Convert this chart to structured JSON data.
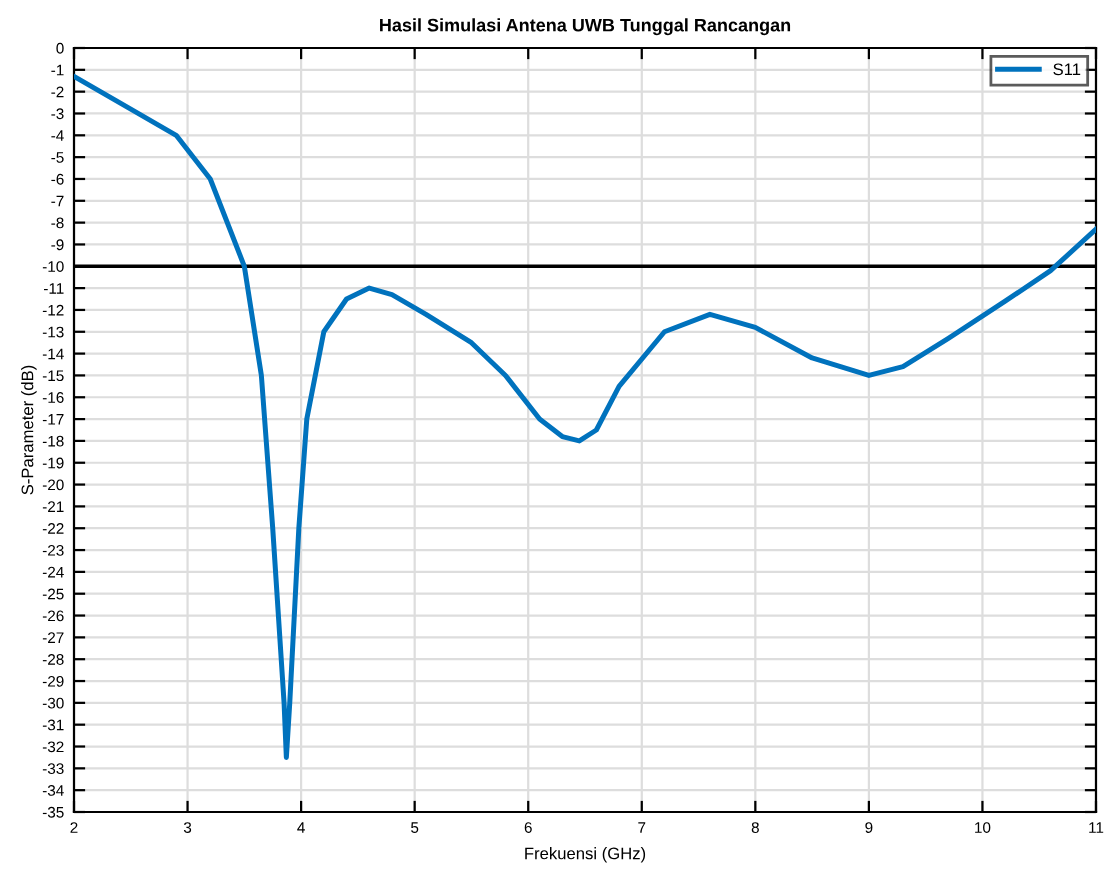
{
  "chart_data": {
    "type": "line",
    "title": "Hasil Simulasi Antena UWB Tunggal Rancangan",
    "xlabel": "Frekuensi (GHz)",
    "ylabel": "S-Parameter (dB)",
    "x": [
      2,
      2.5,
      2.9,
      3.2,
      3.5,
      3.65,
      3.75,
      3.85,
      3.87,
      3.9,
      3.98,
      4.05,
      4.2,
      4.4,
      4.6,
      4.8,
      5.1,
      5.5,
      5.8,
      6.1,
      6.3,
      6.45,
      6.6,
      6.8,
      7.2,
      7.6,
      8.0,
      8.5,
      9.0,
      9.3,
      9.7,
      10.2,
      10.6,
      11
    ],
    "series": [
      {
        "name": "S11",
        "color": "#0072bd",
        "values": [
          -1.3,
          -2.8,
          -4,
          -6,
          -10,
          -15,
          -22,
          -30,
          -32.5,
          -30,
          -22,
          -17,
          -13,
          -11.5,
          -11,
          -11.3,
          -12.2,
          -13.5,
          -15,
          -17,
          -17.8,
          -18,
          -17.5,
          -15.5,
          -13,
          -12.2,
          -12.8,
          -14.2,
          -15,
          -14.6,
          -13.3,
          -11.6,
          -10.2,
          -8.3
        ]
      }
    ],
    "xlim": [
      2,
      11
    ],
    "xticks": [
      2,
      3,
      4,
      5,
      6,
      7,
      8,
      9,
      10,
      11
    ],
    "ylim": [
      -35,
      0
    ],
    "yticks": [
      0,
      -1,
      -2,
      -3,
      -4,
      -5,
      -6,
      -7,
      -8,
      -9,
      -10,
      -11,
      -12,
      -13,
      -14,
      -15,
      -16,
      -17,
      -18,
      -19,
      -20,
      -21,
      -22,
      -23,
      -24,
      -25,
      -26,
      -27,
      -28,
      -29,
      -30,
      -31,
      -32,
      -33,
      -34,
      -35
    ],
    "ref_lines": [
      {
        "axis": "y",
        "value": -10,
        "color": "#000000"
      }
    ],
    "grid": true,
    "legend": "top right",
    "line_style": "solid",
    "marker": "none"
  }
}
